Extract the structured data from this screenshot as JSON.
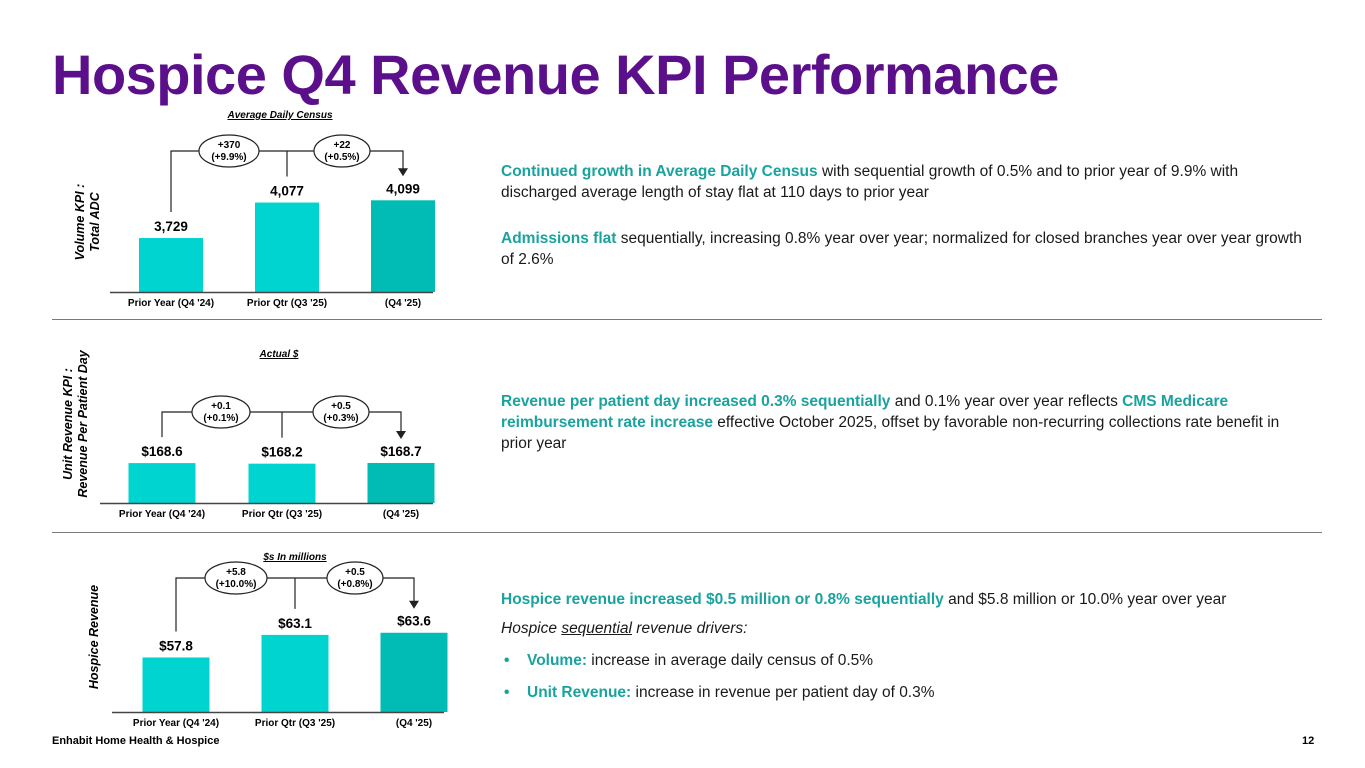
{
  "title": "Hospice Q4 Revenue KPI Performance",
  "colors": {
    "title": "#5b0f8b",
    "bar_light": "#00d4d0",
    "bar_dark": "#00bcb4",
    "highlight": "#1aa39e"
  },
  "chart_data": [
    {
      "type": "bar",
      "title": "Average Daily Census",
      "ylabel": "Volume KPI : Total ADC",
      "categories": [
        "Prior Year (Q4 '24)",
        "Prior Qtr (Q3 '25)",
        "(Q4 '25)"
      ],
      "values": [
        3729,
        4077,
        4099
      ],
      "data_labels": [
        "3,729",
        "4,077",
        "4,099"
      ],
      "ylim": [
        3200,
        4200
      ],
      "changes": [
        {
          "line1": "+370",
          "line2": "(+9.9%)"
        },
        {
          "line1": "+22",
          "line2": "(+0.5%)"
        }
      ]
    },
    {
      "type": "bar",
      "title": "Actual $",
      "ylabel": "Unit Revenue KPI : Revenue Per Patient Day",
      "categories": [
        "Prior Year (Q4 '24)",
        "Prior Qtr (Q3 '25)",
        "(Q4 '25)"
      ],
      "values": [
        168.6,
        168.2,
        168.7
      ],
      "data_labels": [
        "$168.6",
        "$168.2",
        "$168.7"
      ],
      "ylim": [
        140,
        178
      ],
      "changes": [
        {
          "line1": "+0.1",
          "line2": "(+0.1%)"
        },
        {
          "line1": "+0.5",
          "line2": "(+0.3%)"
        }
      ]
    },
    {
      "type": "bar",
      "title": "$s In millions",
      "ylabel": "Hospice Revenue",
      "categories": [
        "Prior Year (Q4 '24)",
        "Prior Qtr (Q3 '25)",
        "(Q4 '25)"
      ],
      "values": [
        57.8,
        63.1,
        63.6
      ],
      "data_labels": [
        "$57.8",
        "$63.1",
        "$63.6"
      ],
      "ylim": [
        45,
        68
      ],
      "changes": [
        {
          "line1": "+5.8",
          "line2": "(+10.0%)"
        },
        {
          "line1": "+0.5",
          "line2": "(+0.8%)"
        }
      ]
    }
  ],
  "sections": {
    "adc": {
      "p1_hl": "Continued growth in Average Daily Census",
      "p1_rest": " with sequential growth of 0.5% and to prior year of 9.9% with discharged average length of stay flat at 110 days to prior year",
      "p2_hl": "Admissions flat",
      "p2_rest": " sequentially, increasing 0.8% year over year; normalized for closed branches year over year growth of 2.6%"
    },
    "rppd": {
      "hl1": "Revenue per patient day increased 0.3% sequentially",
      "mid": " and 0.1% year over year reflects ",
      "hl2": "CMS Medicare reimbursement rate increase",
      "rest": " effective October 2025, offset by favorable non-recurring collections rate benefit in prior year"
    },
    "revenue": {
      "hl": "Hospice revenue increased $0.5 million or 0.8% sequentially",
      "rest": " and $5.8 million or 10.0% year over year",
      "drivers_pre": "Hospice ",
      "drivers_u": "sequential",
      "drivers_post": " revenue drivers:",
      "bullets": [
        {
          "label": "Volume:",
          "text": " increase in average daily census of 0.5%"
        },
        {
          "label": "Unit Revenue:",
          "text": " increase in revenue per patient day of 0.3%"
        }
      ]
    }
  },
  "footer": "Enhabit Home Health & Hospice",
  "page_number": "12"
}
